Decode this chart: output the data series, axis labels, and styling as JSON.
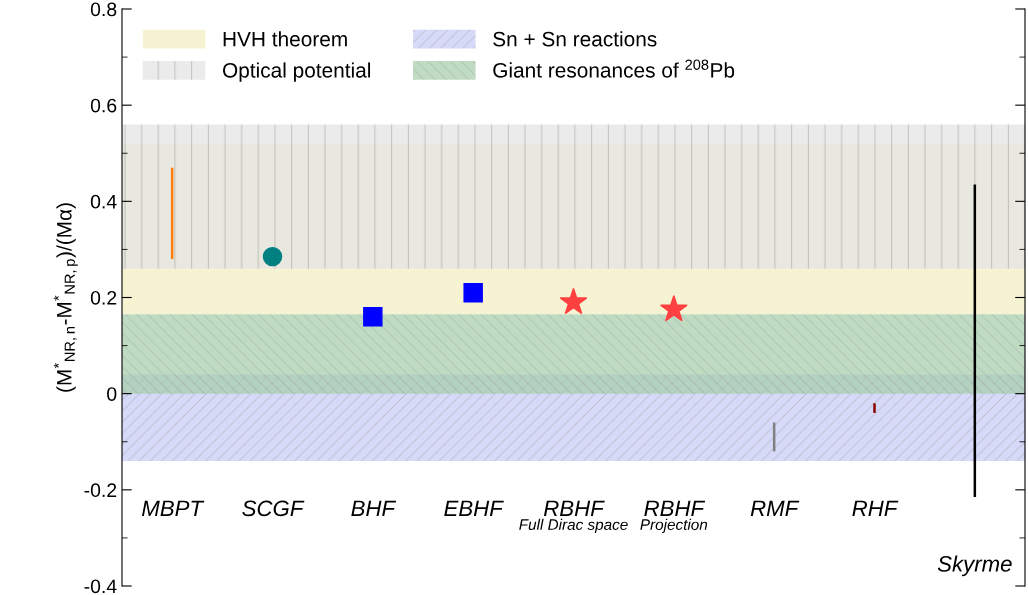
{
  "chart_data": {
    "type": "scatter",
    "ylabel": "(M$^{*}$$_{NR,n}$-M$^{*}$$_{NR,p}$)/(Mα)",
    "categories": [
      "MBPT",
      "SCGF",
      "BHF",
      "EBHF",
      "RBHF",
      "RBHF",
      "RMF",
      "RHF",
      "Skyrme"
    ],
    "ylim": [
      -0.4,
      0.8
    ],
    "yticks": [
      -0.4,
      -0.2,
      0,
      0.2,
      0.4,
      0.6,
      0.8
    ],
    "bands": [
      {
        "axis": "y",
        "from": 0.165,
        "to": 0.52,
        "label": "HVH theorem",
        "color": "#f3efc3"
      },
      {
        "axis": "y",
        "from": 0.26,
        "to": 0.56,
        "label": "Optical potential",
        "color": "#e4e4e4"
      },
      {
        "axis": "y",
        "from": -0.14,
        "to": 0.04,
        "label": "Sn + Sn reactions",
        "color": "#c8ccf6"
      },
      {
        "axis": "y",
        "from": 0.0,
        "to": 0.165,
        "label": "Giant resonances of $^{208}$Pb",
        "color": "#a9cfae"
      }
    ],
    "series": [
      {
        "type": "bar",
        "base": [
          0.28,
          null,
          null,
          null,
          null,
          null,
          -0.12,
          -0.04,
          -0.215
        ],
        "values": [
          0.19,
          null,
          null,
          null,
          null,
          null,
          0.06,
          0.02,
          0.65
        ],
        "colors": [
          "#ff7f0e",
          null,
          null,
          null,
          null,
          null,
          "#808080",
          "#8b0000",
          "#000000"
        ]
      },
      {
        "marker": "circle",
        "color": "#008080",
        "values": [
          null,
          0.285,
          null,
          null,
          null,
          null,
          null,
          null,
          null
        ]
      },
      {
        "marker": "square",
        "color": "#0000ff",
        "values": [
          null,
          null,
          0.16,
          0.21,
          null,
          null,
          null,
          null,
          null
        ]
      },
      {
        "marker": "star",
        "color": "#ff4040",
        "values": [
          null,
          null,
          null,
          null,
          0.19,
          0.175,
          null,
          null,
          null
        ]
      }
    ],
    "annotations": [
      "Full Dirac space",
      "Projection"
    ],
    "legend": "top left"
  }
}
